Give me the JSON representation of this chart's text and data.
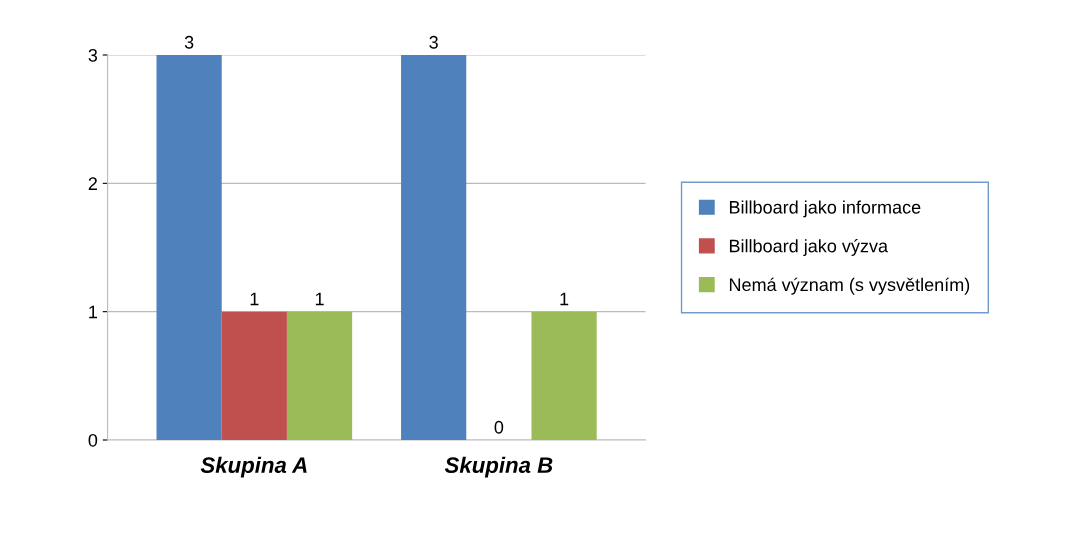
{
  "chart_data": {
    "type": "bar",
    "categories": [
      "Skupina A",
      "Skupina B"
    ],
    "series": [
      {
        "name": "Billboard jako informace",
        "color": "#4f81bd",
        "values": [
          3,
          3
        ]
      },
      {
        "name": "Billboard jako výzva",
        "color": "#c0504d",
        "values": [
          1,
          0
        ]
      },
      {
        "name": "Nemá význam (s vysvětlením)",
        "color": "#9bbb59",
        "values": [
          1,
          1
        ]
      }
    ],
    "ylim": [
      0,
      3
    ],
    "yticks": [
      0,
      1,
      2,
      3
    ],
    "grid": "y",
    "legend": "right",
    "data_labels": true
  }
}
